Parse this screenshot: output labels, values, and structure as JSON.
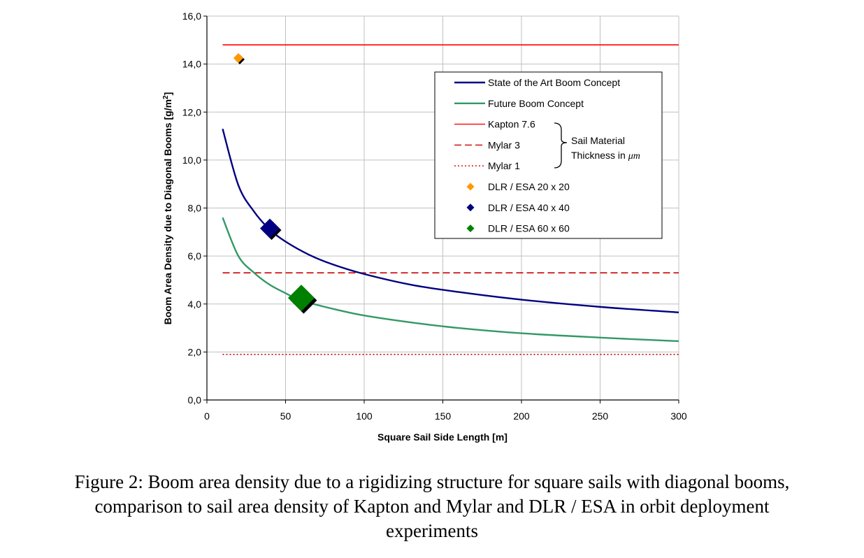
{
  "chart_data": {
    "type": "line",
    "xlabel": "Square Sail Side Length [m]",
    "ylabel": "Boom Area Density due to Diagonal Booms [g/m²]",
    "ylabel_main": "Boom Area Density due to Diagonal Booms  [g/m",
    "ylabel_sup": "2",
    "ylabel_end": "]",
    "xlim": [
      0,
      300
    ],
    "ylim": [
      0,
      16
    ],
    "x_ticks": [
      0,
      50,
      100,
      150,
      200,
      250,
      300
    ],
    "x_tick_labels": [
      "0",
      "50",
      "100",
      "150",
      "200",
      "250",
      "300"
    ],
    "y_ticks": [
      0,
      2,
      4,
      6,
      8,
      10,
      12,
      14,
      16
    ],
    "y_tick_labels": [
      "0,0",
      "2,0",
      "4,0",
      "6,0",
      "8,0",
      "10,0",
      "12,0",
      "14,0",
      "16,0"
    ],
    "grid": true,
    "legend_position": "top-right",
    "series": [
      {
        "name": "State of the Art Boom Concept",
        "color": "#000080",
        "style": "solid",
        "x": [
          10,
          20,
          30,
          40,
          50,
          65,
          80,
          100,
          130,
          160,
          200,
          250,
          300
        ],
        "y": [
          11.3,
          8.95,
          7.85,
          7.1,
          6.6,
          6.05,
          5.65,
          5.25,
          4.8,
          4.5,
          4.18,
          3.88,
          3.65
        ]
      },
      {
        "name": "Future Boom Concept",
        "color": "#339966",
        "style": "solid",
        "x": [
          10,
          20,
          30,
          40,
          50,
          60,
          80,
          100,
          130,
          160,
          200,
          250,
          300
        ],
        "y": [
          7.6,
          6.0,
          5.3,
          4.8,
          4.45,
          4.15,
          3.8,
          3.52,
          3.23,
          3.0,
          2.78,
          2.6,
          2.45
        ]
      }
    ],
    "reference_lines": [
      {
        "name": "Kapton 7.6",
        "y": 14.8,
        "style": "solid",
        "color": "#ff0000"
      },
      {
        "name": "Mylar 3",
        "y": 5.3,
        "style": "dashed",
        "color": "#cc0000"
      },
      {
        "name": "Mylar 1",
        "y": 1.9,
        "style": "dotted",
        "color": "#cc0000"
      }
    ],
    "points": [
      {
        "name": "DLR / ESA 20 x 20",
        "x": 20,
        "y": 14.25,
        "color": "#ff9900",
        "size": "small"
      },
      {
        "name": "DLR / ESA 40 x 40",
        "x": 40,
        "y": 7.15,
        "color": "#000080",
        "size": "medium"
      },
      {
        "name": "DLR / ESA 60 x 60",
        "x": 60,
        "y": 4.25,
        "color": "#008000",
        "size": "large"
      }
    ],
    "legend_brace_label_line1": "Sail Material",
    "legend_brace_label_line2": "Thickness in ",
    "legend_brace_unit": "μm"
  },
  "caption": {
    "line1": "Figure 2: Boom area density due to a rigidizing structure for square sails with diagonal booms,",
    "line2": "comparison to sail area density of Kapton and Mylar and DLR / ESA in orbit deployment",
    "line3": "experiments"
  }
}
